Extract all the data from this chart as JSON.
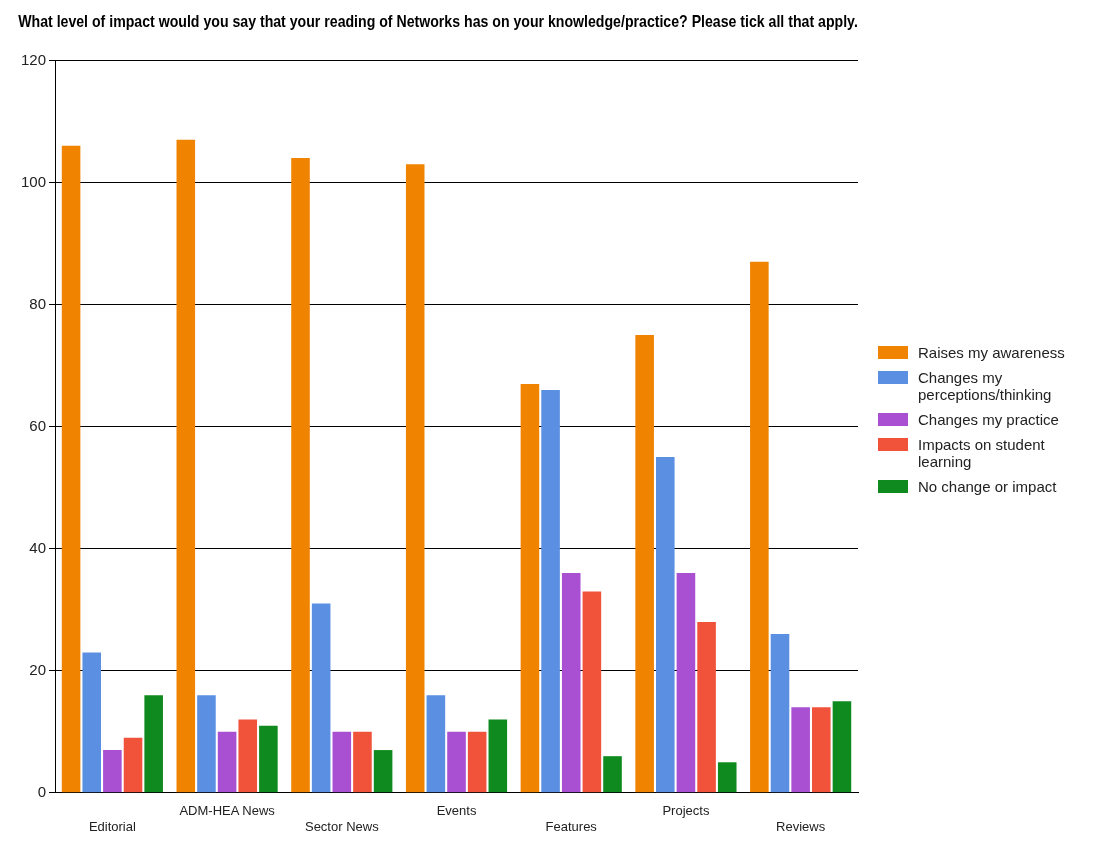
{
  "chart_data": {
    "type": "bar",
    "title": "What level of impact would you say that your reading of Networks has on your knowledge/practice? Please tick all that apply.",
    "categories": [
      "Editorial",
      "ADM-HEA News",
      "Sector News",
      "Events",
      "Features",
      "Projects",
      "Reviews"
    ],
    "series": [
      {
        "name": "Raises my awareness",
        "color": "#f08400",
        "values": [
          106,
          107,
          104,
          103,
          67,
          75,
          87
        ]
      },
      {
        "name": "Changes my perceptions/thinking",
        "color": "#5b8fe2",
        "values": [
          23,
          16,
          31,
          16,
          66,
          55,
          26
        ]
      },
      {
        "name": "Changes my practice",
        "color": "#a84fd2",
        "values": [
          7,
          10,
          10,
          10,
          36,
          36,
          14
        ]
      },
      {
        "name": "Impacts on student learning",
        "color": "#f0523a",
        "values": [
          9,
          12,
          10,
          10,
          33,
          28,
          14
        ]
      },
      {
        "name": "No change or impact",
        "color": "#0f8a1e",
        "values": [
          16,
          11,
          7,
          12,
          6,
          5,
          15
        ]
      }
    ],
    "ylim": [
      0,
      120
    ],
    "yticks": [
      0,
      20,
      40,
      60,
      80,
      100,
      120
    ],
    "grid": "y",
    "legend": "right"
  }
}
